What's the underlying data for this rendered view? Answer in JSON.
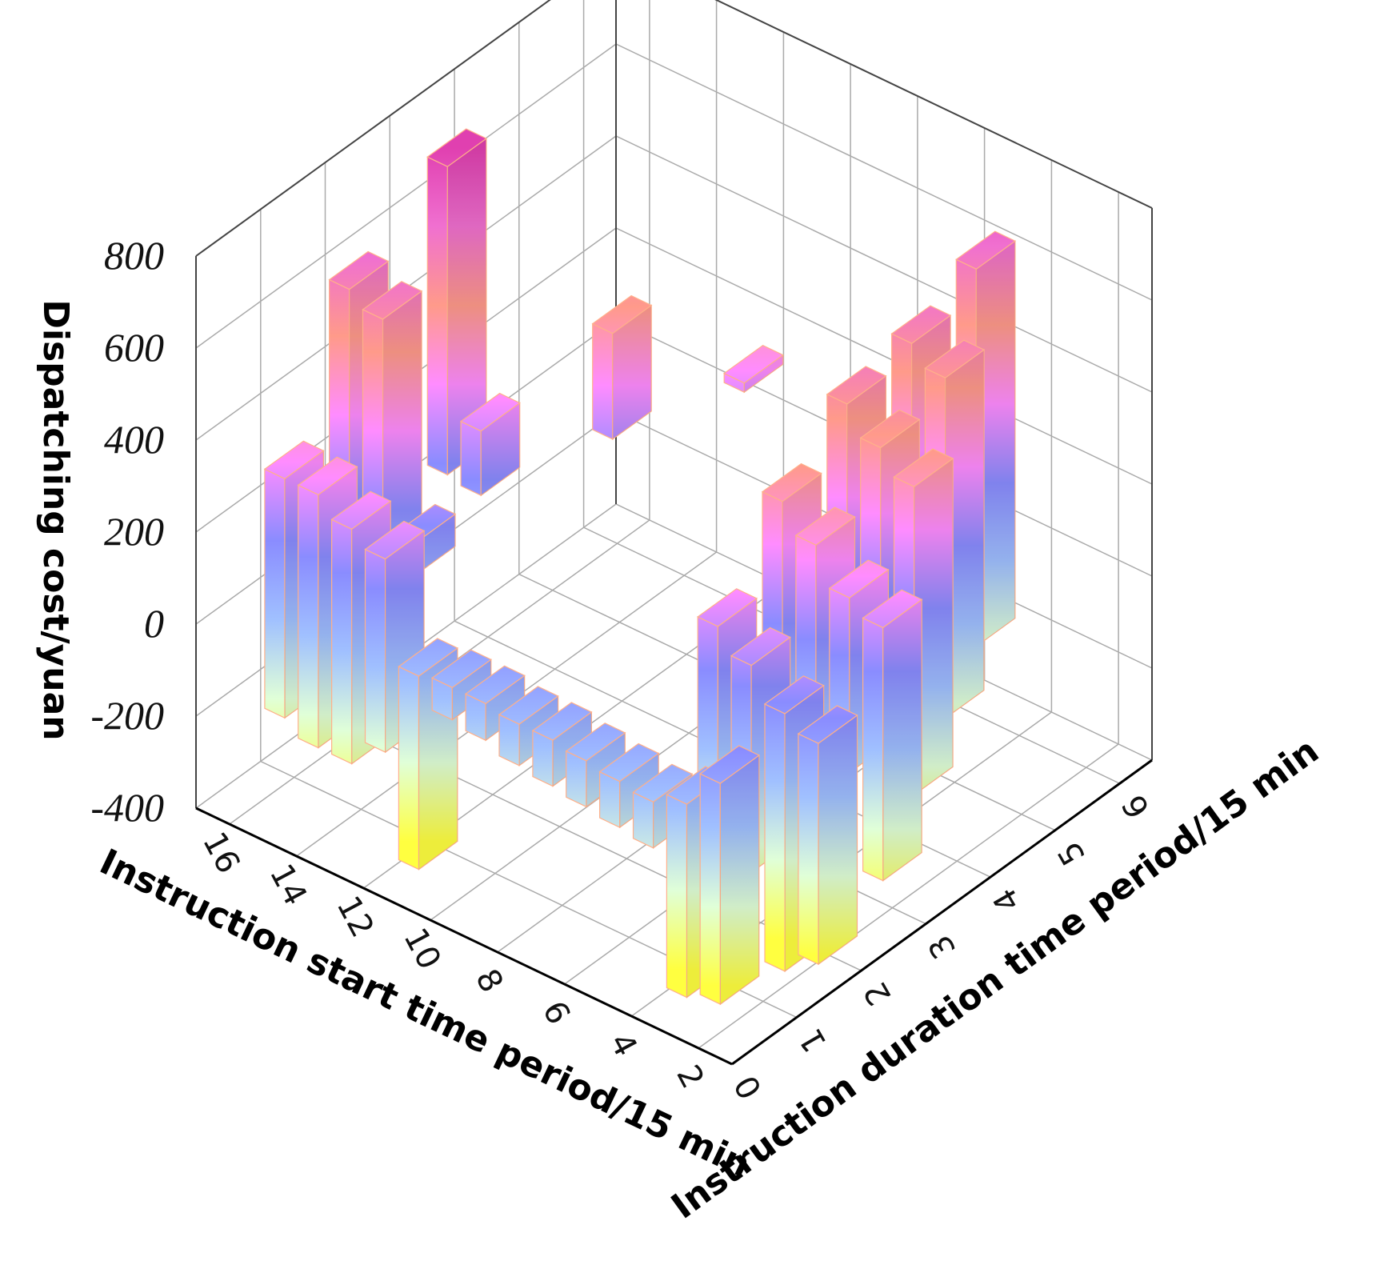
{
  "chart_data": {
    "type": "bar3d",
    "zlabel": "Dispatching cost/yuan",
    "xlabel": "Instruction start time period/15 min",
    "ylabel": "Instruction duration time period/15 min",
    "xlim": [
      1,
      17
    ],
    "xticks": [
      2,
      4,
      6,
      8,
      10,
      12,
      14,
      16
    ],
    "ylim": [
      0,
      6.5
    ],
    "yticks": [
      0,
      1,
      2,
      3,
      4,
      5,
      6
    ],
    "zlim": [
      -400,
      800
    ],
    "zticks": [
      -400,
      -200,
      0,
      200,
      400,
      600,
      800
    ],
    "grid": true,
    "colormap": [
      "#ffff40",
      "#e0ffd8",
      "#a0c0ff",
      "#8a8cff",
      "#ff8cff",
      "#ff9a8a",
      "#f070d0",
      "#e040b0"
    ],
    "edge_color": "#ffb08a",
    "bars": [
      {
        "x": 16,
        "y": 1,
        "low": -230,
        "high": 290
      },
      {
        "x": 15,
        "y": 1,
        "low": -260,
        "high": 290
      },
      {
        "x": 14,
        "y": 1,
        "low": -260,
        "high": 250
      },
      {
        "x": 13,
        "y": 1,
        "low": -200,
        "high": 220
      },
      {
        "x": 12,
        "y": 1,
        "low": -420,
        "high": 0
      },
      {
        "x": 11,
        "y": 1,
        "low": -60,
        "high": 10
      },
      {
        "x": 10,
        "y": 1,
        "low": -70,
        "high": 10
      },
      {
        "x": 9,
        "y": 1,
        "low": -90,
        "high": 0
      },
      {
        "x": 8,
        "y": 1,
        "low": -100,
        "high": 0
      },
      {
        "x": 7,
        "y": 1,
        "low": -110,
        "high": -10
      },
      {
        "x": 6,
        "y": 1,
        "low": -120,
        "high": -20
      },
      {
        "x": 5,
        "y": 1,
        "low": -130,
        "high": -30
      },
      {
        "x": 4,
        "y": 1,
        "low": -420,
        "high": 0
      },
      {
        "x": 3,
        "y": 1,
        "low": -400,
        "high": 80
      },
      {
        "x": 16,
        "y": 2,
        "low": 60,
        "high": 600
      },
      {
        "x": 15,
        "y": 2,
        "low": 50,
        "high": 570
      },
      {
        "x": 14,
        "y": 2,
        "low": 50,
        "high": 120
      },
      {
        "x": 15,
        "y": 3,
        "low": 130,
        "high": 800
      },
      {
        "x": 14,
        "y": 3,
        "low": 120,
        "high": 260
      },
      {
        "x": 12,
        "y": 4,
        "low": 210,
        "high": 440
      },
      {
        "x": 10,
        "y": 5,
        "low": 280,
        "high": 300
      },
      {
        "x": 5,
        "y": 2,
        "low": -150,
        "high": 250
      },
      {
        "x": 4,
        "y": 2,
        "low": -250,
        "high": 200
      },
      {
        "x": 3,
        "y": 2,
        "low": -430,
        "high": 130
      },
      {
        "x": 2,
        "y": 2,
        "low": -380,
        "high": 100
      },
      {
        "x": 5,
        "y": 3,
        "low": -100,
        "high": 420
      },
      {
        "x": 4,
        "y": 3,
        "low": -50,
        "high": 360
      },
      {
        "x": 3,
        "y": 3,
        "low": -100,
        "high": 280
      },
      {
        "x": 2,
        "y": 3,
        "low": -300,
        "high": 250
      },
      {
        "x": 5,
        "y": 4,
        "low": -120,
        "high": 530
      },
      {
        "x": 4,
        "y": 4,
        "low": -150,
        "high": 470
      },
      {
        "x": 3,
        "y": 4,
        "low": -250,
        "high": 420
      },
      {
        "x": 5,
        "y": 5,
        "low": -180,
        "high": 560
      },
      {
        "x": 4,
        "y": 5,
        "low": -220,
        "high": 520
      },
      {
        "x": 5,
        "y": 6,
        "low": -200,
        "high": 620
      }
    ]
  }
}
